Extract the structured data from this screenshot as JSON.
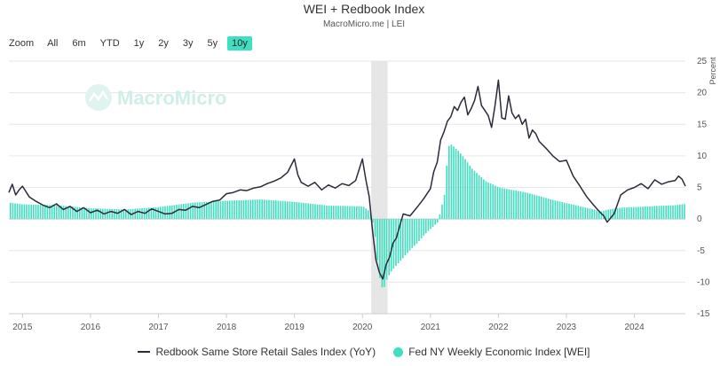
{
  "title": "WEI + Redbook Index",
  "subtitle": "MacroMicro.me | LEI",
  "zoom": {
    "label": "Zoom",
    "buttons": [
      "All",
      "6m",
      "YTD",
      "1y",
      "2y",
      "3y",
      "5y",
      "10y"
    ],
    "active": "10y"
  },
  "watermark": "MacroMicro",
  "colors": {
    "redbook": "#2b2b3a",
    "wei": "#3ee0c1",
    "recession": "#e6e6e6",
    "grid": "#e6e6e6"
  },
  "chart_data": {
    "type": "line",
    "x_range": [
      2014.8,
      2024.75
    ],
    "ylim": [
      -15,
      25
    ],
    "yticks": [
      25,
      20,
      15,
      10,
      5,
      0,
      -5,
      -10,
      -15
    ],
    "ylabel": "Percent",
    "xticks": [
      2015,
      2016,
      2017,
      2018,
      2019,
      2020,
      2021,
      2022,
      2023,
      2024
    ],
    "xtick_labels": [
      "2015",
      "2016",
      "2017",
      "2018",
      "2019",
      "2020",
      "2021",
      "2022",
      "2023",
      "2024"
    ],
    "recession_band": [
      2020.13,
      2020.37
    ],
    "grid": "horizontal",
    "legend_position": "bottom",
    "series": [
      {
        "name": "Redbook Same Store Retail Sales Index (YoY)",
        "kind": "line",
        "x": [
          2014.8,
          2014.85,
          2014.9,
          2014.95,
          2015.0,
          2015.1,
          2015.2,
          2015.3,
          2015.4,
          2015.5,
          2015.6,
          2015.7,
          2015.8,
          2015.9,
          2016.0,
          2016.1,
          2016.2,
          2016.3,
          2016.4,
          2016.5,
          2016.6,
          2016.7,
          2016.8,
          2016.9,
          2017.0,
          2017.1,
          2017.2,
          2017.3,
          2017.4,
          2017.5,
          2017.6,
          2017.7,
          2017.8,
          2017.9,
          2018.0,
          2018.1,
          2018.2,
          2018.3,
          2018.4,
          2018.5,
          2018.6,
          2018.7,
          2018.8,
          2018.9,
          2019.0,
          2019.05,
          2019.1,
          2019.2,
          2019.3,
          2019.4,
          2019.5,
          2019.6,
          2019.7,
          2019.8,
          2019.9,
          2020.0,
          2020.05,
          2020.1,
          2020.15,
          2020.2,
          2020.25,
          2020.3,
          2020.35,
          2020.4,
          2020.45,
          2020.5,
          2020.55,
          2020.6,
          2020.7,
          2020.8,
          2020.9,
          2021.0,
          2021.05,
          2021.1,
          2021.15,
          2021.2,
          2021.25,
          2021.3,
          2021.35,
          2021.4,
          2021.45,
          2021.5,
          2021.55,
          2021.6,
          2021.65,
          2021.7,
          2021.75,
          2021.8,
          2021.85,
          2021.9,
          2021.95,
          2022.0,
          2022.05,
          2022.1,
          2022.15,
          2022.2,
          2022.25,
          2022.3,
          2022.35,
          2022.4,
          2022.45,
          2022.5,
          2022.55,
          2022.6,
          2022.7,
          2022.8,
          2022.9,
          2023.0,
          2023.1,
          2023.2,
          2023.3,
          2023.4,
          2023.5,
          2023.55,
          2023.6,
          2023.7,
          2023.8,
          2023.9,
          2024.0,
          2024.1,
          2024.2,
          2024.3,
          2024.4,
          2024.5,
          2024.6,
          2024.65,
          2024.7,
          2024.75
        ],
        "values": [
          4.2,
          5.5,
          3.8,
          4.6,
          5.2,
          3.5,
          2.8,
          2.2,
          1.8,
          2.4,
          1.5,
          2.0,
          1.2,
          1.8,
          1.0,
          1.4,
          0.8,
          1.2,
          0.9,
          1.5,
          0.7,
          1.2,
          0.9,
          1.6,
          1.2,
          0.8,
          0.9,
          1.5,
          1.4,
          2.0,
          1.8,
          2.3,
          2.8,
          3.0,
          4.0,
          4.2,
          4.6,
          4.5,
          4.9,
          5.1,
          5.6,
          6.0,
          6.5,
          7.4,
          9.5,
          7.0,
          5.8,
          5.2,
          5.8,
          4.6,
          5.4,
          4.9,
          5.6,
          5.3,
          6.1,
          9.5,
          6.2,
          3.5,
          -2.0,
          -6.5,
          -8.5,
          -9.5,
          -7.2,
          -6.0,
          -3.8,
          -3.0,
          -1.0,
          0.8,
          0.5,
          1.8,
          3.2,
          4.8,
          7.5,
          9.0,
          12.5,
          13.8,
          15.5,
          16.2,
          17.8,
          17.2,
          18.5,
          19.3,
          16.5,
          17.5,
          18.8,
          21.0,
          18.0,
          17.2,
          16.4,
          14.5,
          18.0,
          22.0,
          16.0,
          15.8,
          19.5,
          16.8,
          15.9,
          16.5,
          15.0,
          15.8,
          12.8,
          14.1,
          13.5,
          12.3,
          11.2,
          10.0,
          9.1,
          9.3,
          6.8,
          5.2,
          3.5,
          2.2,
          1.0,
          0.5,
          -0.5,
          0.8,
          3.8,
          4.6,
          5.0,
          5.6,
          4.8,
          6.2,
          5.5,
          5.9,
          6.1,
          6.8,
          6.3,
          5.2
        ]
      },
      {
        "name": "Fed NY Weekly Economic Index [WEI]",
        "kind": "column",
        "x": [
          2014.8,
          2015.0,
          2015.5,
          2016.0,
          2016.5,
          2017.0,
          2017.5,
          2018.0,
          2018.5,
          2019.0,
          2019.5,
          2020.0,
          2020.12,
          2020.18,
          2020.22,
          2020.26,
          2020.3,
          2020.35,
          2020.4,
          2020.5,
          2020.6,
          2020.7,
          2020.8,
          2020.9,
          2021.0,
          2021.1,
          2021.2,
          2021.25,
          2021.3,
          2021.4,
          2021.5,
          2021.6,
          2021.7,
          2021.8,
          2021.9,
          2022.0,
          2022.2,
          2022.4,
          2022.6,
          2022.8,
          2023.0,
          2023.2,
          2023.4,
          2023.5,
          2023.6,
          2023.8,
          2024.0,
          2024.2,
          2024.4,
          2024.6,
          2024.75
        ],
        "values": [
          2.6,
          2.3,
          2.2,
          1.7,
          1.5,
          1.9,
          2.6,
          2.9,
          3.1,
          2.7,
          2.1,
          2.0,
          1.0,
          -3.0,
          -7.5,
          -10.5,
          -11.2,
          -9.5,
          -8.5,
          -7.2,
          -6.0,
          -4.8,
          -3.8,
          -2.5,
          -1.5,
          -0.5,
          4.0,
          11.5,
          11.8,
          10.8,
          9.5,
          8.0,
          7.0,
          6.0,
          5.5,
          5.0,
          4.6,
          4.2,
          3.6,
          3.0,
          2.5,
          2.0,
          1.5,
          1.2,
          1.5,
          1.8,
          1.9,
          2.0,
          2.1,
          2.2,
          2.4
        ]
      }
    ]
  },
  "legend": {
    "redbook": "Redbook Same Store Retail Sales Index (YoY)",
    "wei": "Fed NY Weekly Economic Index [WEI]"
  }
}
